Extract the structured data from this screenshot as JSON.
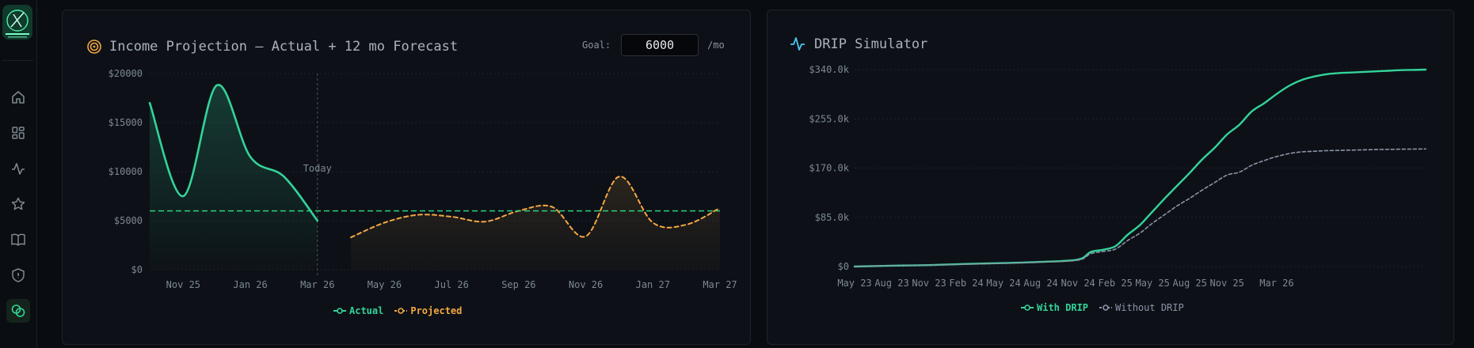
{
  "nav": {
    "items": [
      {
        "name": "home-icon",
        "active": false
      },
      {
        "name": "dashboard-icon",
        "active": false
      },
      {
        "name": "activity-icon",
        "active": false
      },
      {
        "name": "star-icon",
        "active": false
      },
      {
        "name": "book-icon",
        "active": false
      },
      {
        "name": "shield-icon",
        "active": false
      },
      {
        "name": "coins-icon",
        "active": true
      }
    ]
  },
  "income_card": {
    "title": "Income Projection — Actual + 12 mo Forecast",
    "goal_label": "Goal:",
    "goal_value": "6000",
    "goal_unit": "/mo",
    "today_label": "Today"
  },
  "drip_card": {
    "title": "DRIP Simulator"
  },
  "colors": {
    "actual": "#34d399",
    "projected": "#f5a742",
    "goal_line": "#2bd17e",
    "with_drip": "#34d399",
    "without_drip": "#8b93a7"
  },
  "chart_data": [
    {
      "type": "area",
      "x_ticks": [
        "Nov 25",
        "Jan 26",
        "Mar 26",
        "May 26",
        "Jul 26",
        "Sep 26",
        "Nov 26",
        "Jan 27",
        "Mar 27"
      ],
      "y_ticks": [
        "$0",
        "$5000",
        "$10000",
        "$15000",
        "$20000"
      ],
      "ylim": [
        0,
        20000
      ],
      "goal": 6000,
      "today_month": 5.0,
      "grid": "horizontal dotted",
      "legend_position": "bottom-center",
      "series": [
        {
          "name": "Actual",
          "style": "solid",
          "x": [
            0,
            1,
            2,
            3,
            4,
            5
          ],
          "values": [
            17000,
            7500,
            18800,
            11500,
            9500,
            5000
          ]
        },
        {
          "name": "Projected",
          "style": "dashed",
          "x": [
            6,
            7,
            8,
            9,
            10,
            11,
            12,
            13,
            14,
            15,
            16,
            17
          ],
          "values": [
            3300,
            4800,
            5600,
            5400,
            4900,
            6000,
            6400,
            3400,
            9500,
            4800,
            4600,
            6300
          ]
        }
      ]
    },
    {
      "type": "line",
      "x_ticks": [
        "May 23",
        "Aug 23",
        "Nov 23",
        "Feb 24",
        "May 24",
        "Aug 24",
        "Nov 24",
        "Feb 25",
        "May 25",
        "Aug 25",
        "Nov 25",
        "Mar 26"
      ],
      "y_ticks": [
        "$0",
        "$85.0k",
        "$170.0k",
        "$255.0k",
        "$340.0k"
      ],
      "ylim": [
        0,
        340000
      ],
      "grid": "horizontal dotted",
      "legend_position": "bottom-center",
      "series": [
        {
          "name": "With DRIP",
          "style": "solid",
          "x": [
            0,
            3,
            6,
            9,
            12,
            15,
            18,
            19,
            20,
            21,
            22,
            23,
            24,
            25,
            26,
            27,
            28,
            29,
            30,
            31,
            32,
            33,
            34,
            35,
            36,
            37,
            38,
            39,
            40,
            41,
            42,
            43,
            44,
            45,
            46
          ],
          "values": [
            0,
            1500,
            2500,
            4500,
            6000,
            8000,
            12000,
            25000,
            29000,
            35000,
            55000,
            72000,
            95000,
            118000,
            140000,
            162000,
            185000,
            205000,
            228000,
            245000,
            268000,
            282000,
            298000,
            312000,
            322000,
            328000,
            332000,
            334000,
            335000,
            336000,
            337000,
            338000,
            339000,
            339500,
            340000
          ]
        },
        {
          "name": "Without DRIP",
          "style": "dashed",
          "x": [
            0,
            3,
            6,
            9,
            12,
            15,
            18,
            19,
            20,
            21,
            22,
            23,
            24,
            25,
            26,
            27,
            28,
            29,
            30,
            31,
            32,
            33,
            34,
            35,
            36,
            37,
            38,
            39,
            40,
            41,
            42,
            43,
            44,
            45,
            46
          ],
          "values": [
            0,
            1500,
            2500,
            4000,
            5500,
            7500,
            11000,
            22000,
            26000,
            30000,
            45000,
            58000,
            75000,
            90000,
            105000,
            118000,
            132000,
            145000,
            158000,
            163000,
            175000,
            183000,
            190000,
            195000,
            198000,
            199000,
            200000,
            200500,
            201000,
            201500,
            202000,
            202300,
            202600,
            202800,
            203000
          ]
        }
      ]
    }
  ]
}
